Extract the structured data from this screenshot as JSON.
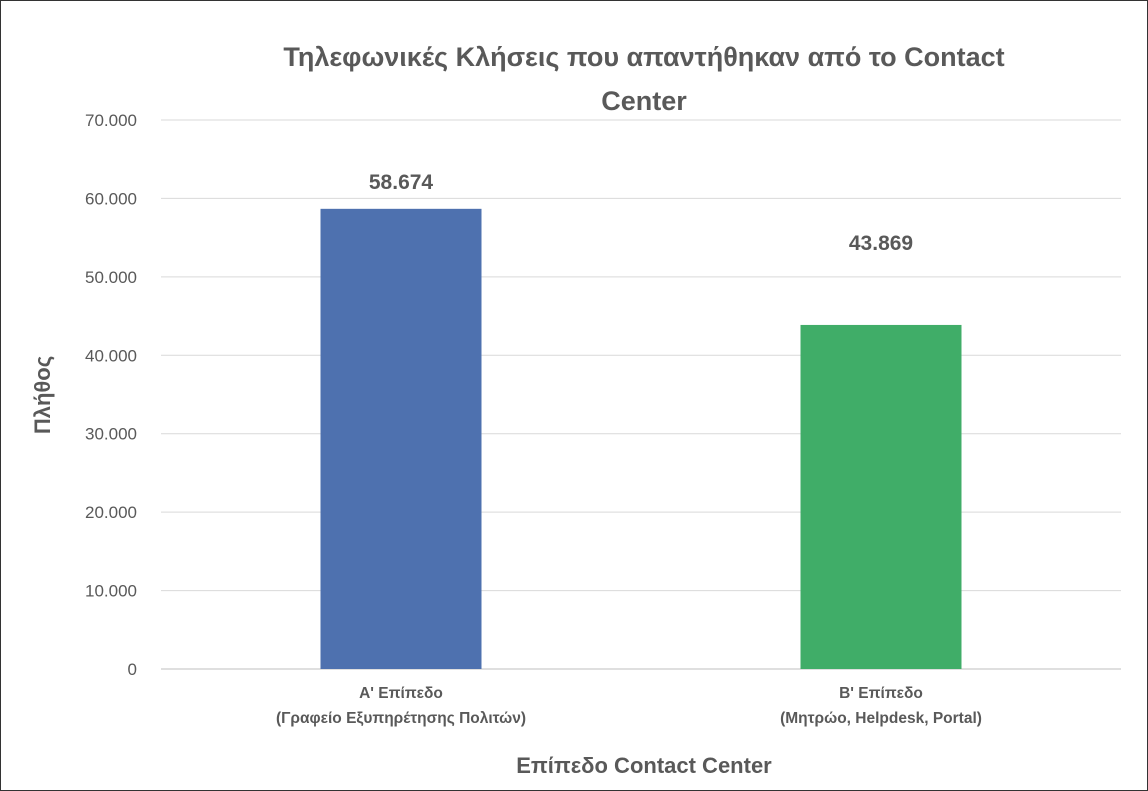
{
  "chart_data": {
    "type": "bar",
    "title": "Τηλεφωνικές Κλήσεις που απαντήθηκαν από το Contact Center",
    "title_lines": [
      "Τηλεφωνικές Κλήσεις που απαντήθηκαν από το Contact",
      "Center"
    ],
    "xlabel": "Επίπεδο Contact Center",
    "ylabel": "Πλήθος",
    "categories": [
      [
        "Α' Επίπεδο",
        "(Γραφείο Εξυπηρέτησης Πολιτών)"
      ],
      [
        "Β' Επίπεδο",
        "(Μητρώο, Helpdesk, Portal)"
      ]
    ],
    "values": [
      58674,
      43869
    ],
    "data_labels": [
      "58.674",
      "43.869"
    ],
    "colors": [
      "#4E71AF",
      "#40AD68"
    ],
    "ylim": [
      0,
      70000
    ],
    "yticks": [
      0,
      10000,
      20000,
      30000,
      40000,
      50000,
      60000,
      70000
    ],
    "ytick_labels": [
      "0",
      "10.000",
      "20.000",
      "30.000",
      "40.000",
      "50.000",
      "60.000",
      "70.000"
    ],
    "grid": true,
    "legend": "none"
  }
}
